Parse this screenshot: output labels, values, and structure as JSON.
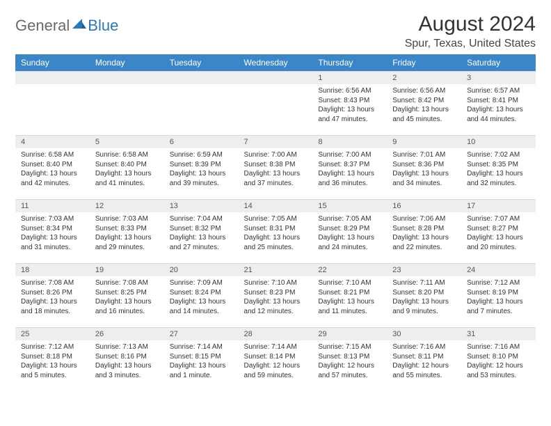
{
  "logo": {
    "text1": "General",
    "text2": "Blue"
  },
  "title": "August 2024",
  "location": "Spur, Texas, United States",
  "colors": {
    "header_bg": "#3b86c6",
    "header_text": "#ffffff",
    "daynum_bg": "#eceeef",
    "logo_gray": "#6a6a6a",
    "logo_blue": "#2b77bd"
  },
  "weekdays": [
    "Sunday",
    "Monday",
    "Tuesday",
    "Wednesday",
    "Thursday",
    "Friday",
    "Saturday"
  ],
  "weeks": [
    [
      {
        "n": "",
        "sr": "",
        "ss": "",
        "dl": ""
      },
      {
        "n": "",
        "sr": "",
        "ss": "",
        "dl": ""
      },
      {
        "n": "",
        "sr": "",
        "ss": "",
        "dl": ""
      },
      {
        "n": "",
        "sr": "",
        "ss": "",
        "dl": ""
      },
      {
        "n": "1",
        "sr": "Sunrise: 6:56 AM",
        "ss": "Sunset: 8:43 PM",
        "dl": "Daylight: 13 hours and 47 minutes."
      },
      {
        "n": "2",
        "sr": "Sunrise: 6:56 AM",
        "ss": "Sunset: 8:42 PM",
        "dl": "Daylight: 13 hours and 45 minutes."
      },
      {
        "n": "3",
        "sr": "Sunrise: 6:57 AM",
        "ss": "Sunset: 8:41 PM",
        "dl": "Daylight: 13 hours and 44 minutes."
      }
    ],
    [
      {
        "n": "4",
        "sr": "Sunrise: 6:58 AM",
        "ss": "Sunset: 8:40 PM",
        "dl": "Daylight: 13 hours and 42 minutes."
      },
      {
        "n": "5",
        "sr": "Sunrise: 6:58 AM",
        "ss": "Sunset: 8:40 PM",
        "dl": "Daylight: 13 hours and 41 minutes."
      },
      {
        "n": "6",
        "sr": "Sunrise: 6:59 AM",
        "ss": "Sunset: 8:39 PM",
        "dl": "Daylight: 13 hours and 39 minutes."
      },
      {
        "n": "7",
        "sr": "Sunrise: 7:00 AM",
        "ss": "Sunset: 8:38 PM",
        "dl": "Daylight: 13 hours and 37 minutes."
      },
      {
        "n": "8",
        "sr": "Sunrise: 7:00 AM",
        "ss": "Sunset: 8:37 PM",
        "dl": "Daylight: 13 hours and 36 minutes."
      },
      {
        "n": "9",
        "sr": "Sunrise: 7:01 AM",
        "ss": "Sunset: 8:36 PM",
        "dl": "Daylight: 13 hours and 34 minutes."
      },
      {
        "n": "10",
        "sr": "Sunrise: 7:02 AM",
        "ss": "Sunset: 8:35 PM",
        "dl": "Daylight: 13 hours and 32 minutes."
      }
    ],
    [
      {
        "n": "11",
        "sr": "Sunrise: 7:03 AM",
        "ss": "Sunset: 8:34 PM",
        "dl": "Daylight: 13 hours and 31 minutes."
      },
      {
        "n": "12",
        "sr": "Sunrise: 7:03 AM",
        "ss": "Sunset: 8:33 PM",
        "dl": "Daylight: 13 hours and 29 minutes."
      },
      {
        "n": "13",
        "sr": "Sunrise: 7:04 AM",
        "ss": "Sunset: 8:32 PM",
        "dl": "Daylight: 13 hours and 27 minutes."
      },
      {
        "n": "14",
        "sr": "Sunrise: 7:05 AM",
        "ss": "Sunset: 8:31 PM",
        "dl": "Daylight: 13 hours and 25 minutes."
      },
      {
        "n": "15",
        "sr": "Sunrise: 7:05 AM",
        "ss": "Sunset: 8:29 PM",
        "dl": "Daylight: 13 hours and 24 minutes."
      },
      {
        "n": "16",
        "sr": "Sunrise: 7:06 AM",
        "ss": "Sunset: 8:28 PM",
        "dl": "Daylight: 13 hours and 22 minutes."
      },
      {
        "n": "17",
        "sr": "Sunrise: 7:07 AM",
        "ss": "Sunset: 8:27 PM",
        "dl": "Daylight: 13 hours and 20 minutes."
      }
    ],
    [
      {
        "n": "18",
        "sr": "Sunrise: 7:08 AM",
        "ss": "Sunset: 8:26 PM",
        "dl": "Daylight: 13 hours and 18 minutes."
      },
      {
        "n": "19",
        "sr": "Sunrise: 7:08 AM",
        "ss": "Sunset: 8:25 PM",
        "dl": "Daylight: 13 hours and 16 minutes."
      },
      {
        "n": "20",
        "sr": "Sunrise: 7:09 AM",
        "ss": "Sunset: 8:24 PM",
        "dl": "Daylight: 13 hours and 14 minutes."
      },
      {
        "n": "21",
        "sr": "Sunrise: 7:10 AM",
        "ss": "Sunset: 8:23 PM",
        "dl": "Daylight: 13 hours and 12 minutes."
      },
      {
        "n": "22",
        "sr": "Sunrise: 7:10 AM",
        "ss": "Sunset: 8:21 PM",
        "dl": "Daylight: 13 hours and 11 minutes."
      },
      {
        "n": "23",
        "sr": "Sunrise: 7:11 AM",
        "ss": "Sunset: 8:20 PM",
        "dl": "Daylight: 13 hours and 9 minutes."
      },
      {
        "n": "24",
        "sr": "Sunrise: 7:12 AM",
        "ss": "Sunset: 8:19 PM",
        "dl": "Daylight: 13 hours and 7 minutes."
      }
    ],
    [
      {
        "n": "25",
        "sr": "Sunrise: 7:12 AM",
        "ss": "Sunset: 8:18 PM",
        "dl": "Daylight: 13 hours and 5 minutes."
      },
      {
        "n": "26",
        "sr": "Sunrise: 7:13 AM",
        "ss": "Sunset: 8:16 PM",
        "dl": "Daylight: 13 hours and 3 minutes."
      },
      {
        "n": "27",
        "sr": "Sunrise: 7:14 AM",
        "ss": "Sunset: 8:15 PM",
        "dl": "Daylight: 13 hours and 1 minute."
      },
      {
        "n": "28",
        "sr": "Sunrise: 7:14 AM",
        "ss": "Sunset: 8:14 PM",
        "dl": "Daylight: 12 hours and 59 minutes."
      },
      {
        "n": "29",
        "sr": "Sunrise: 7:15 AM",
        "ss": "Sunset: 8:13 PM",
        "dl": "Daylight: 12 hours and 57 minutes."
      },
      {
        "n": "30",
        "sr": "Sunrise: 7:16 AM",
        "ss": "Sunset: 8:11 PM",
        "dl": "Daylight: 12 hours and 55 minutes."
      },
      {
        "n": "31",
        "sr": "Sunrise: 7:16 AM",
        "ss": "Sunset: 8:10 PM",
        "dl": "Daylight: 12 hours and 53 minutes."
      }
    ]
  ]
}
